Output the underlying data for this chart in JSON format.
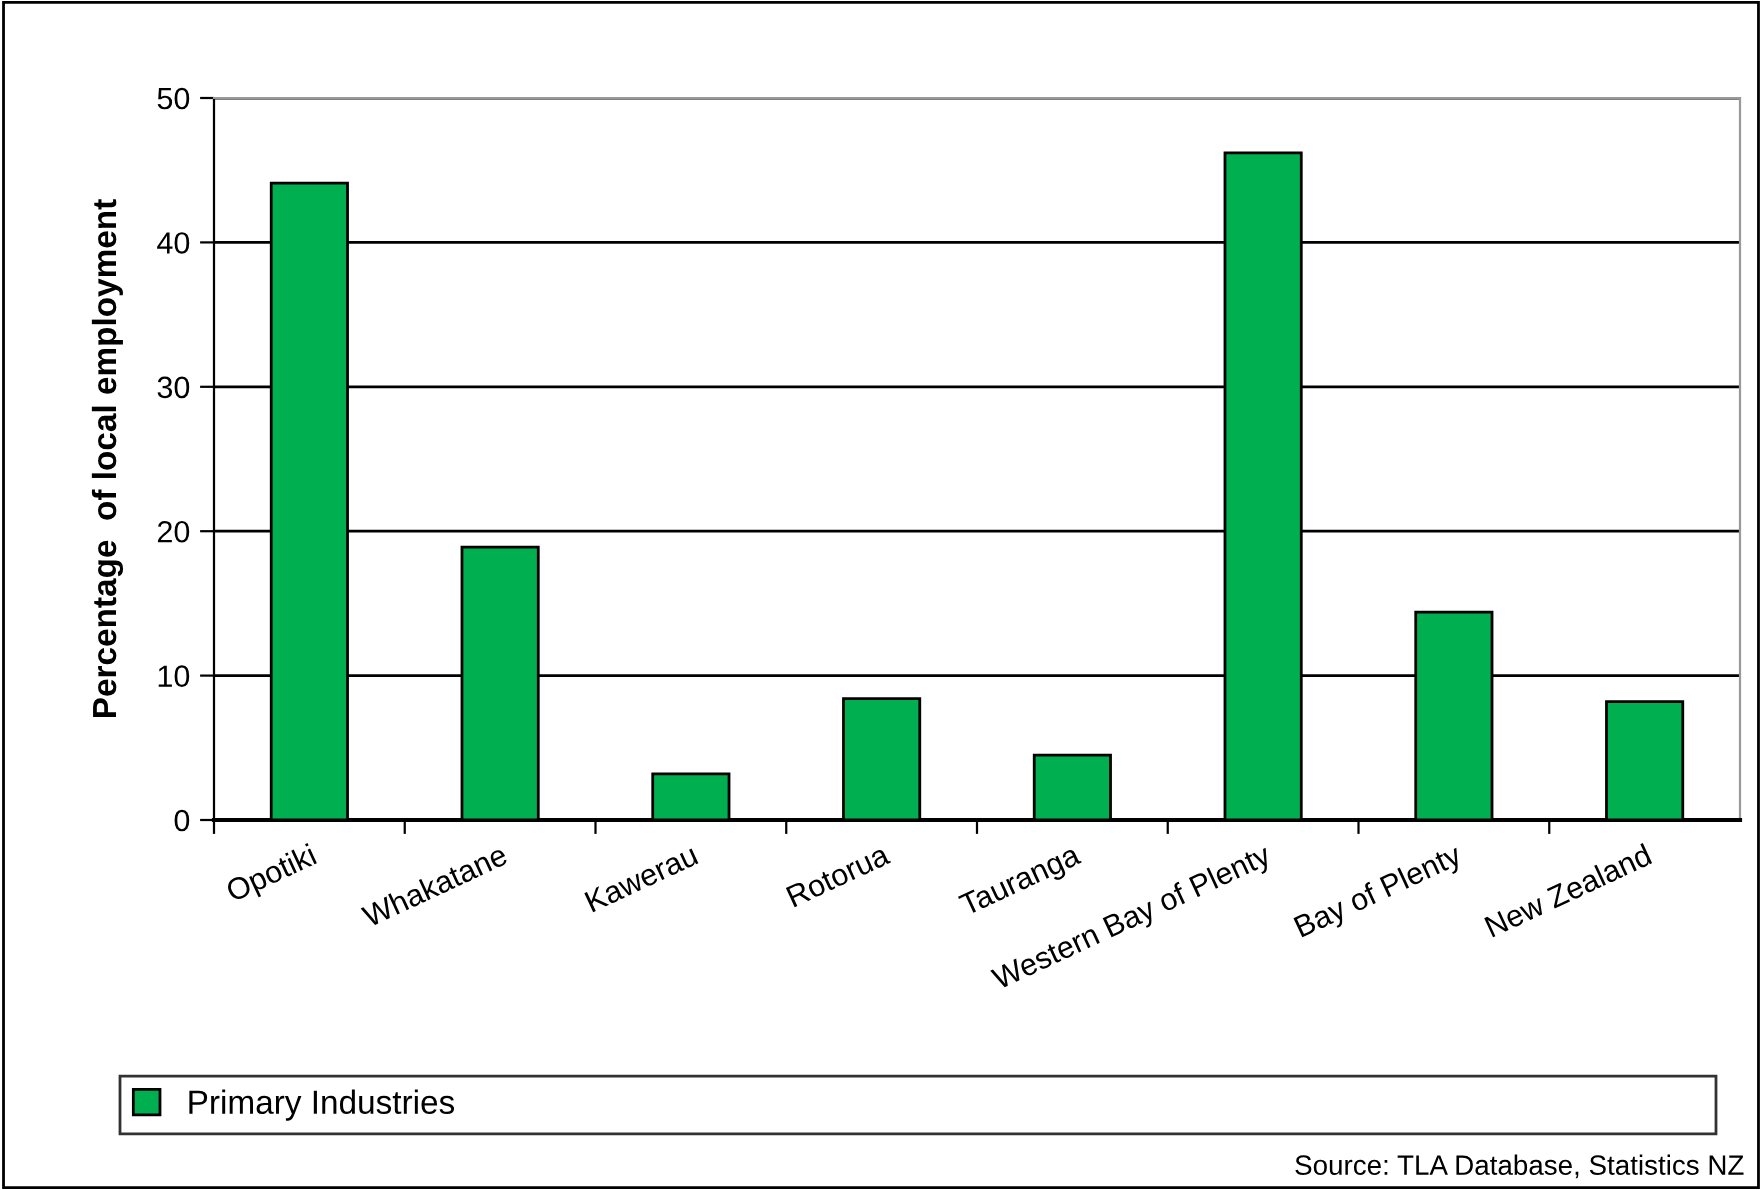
{
  "chart_data": {
    "type": "bar",
    "ylabel": "Percentage  of local employment",
    "categories": [
      "Opotiki",
      "Whakatane",
      "Kawerau",
      "Rotorua",
      "Tauranga",
      "Western Bay of Plenty",
      "Bay of Plenty",
      "New Zealand"
    ],
    "series": [
      {
        "name": "Primary Industries",
        "color": "#00b050",
        "values": [
          44.1,
          18.9,
          3.2,
          8.4,
          4.5,
          46.2,
          14.4,
          8.2
        ]
      }
    ],
    "ylim": [
      0,
      50
    ],
    "yticks": [
      0,
      10,
      20,
      30,
      40,
      50
    ],
    "grid": "y",
    "legend": "bottom",
    "annotations": [
      "Source: TLA Database, Statistics NZ"
    ]
  }
}
